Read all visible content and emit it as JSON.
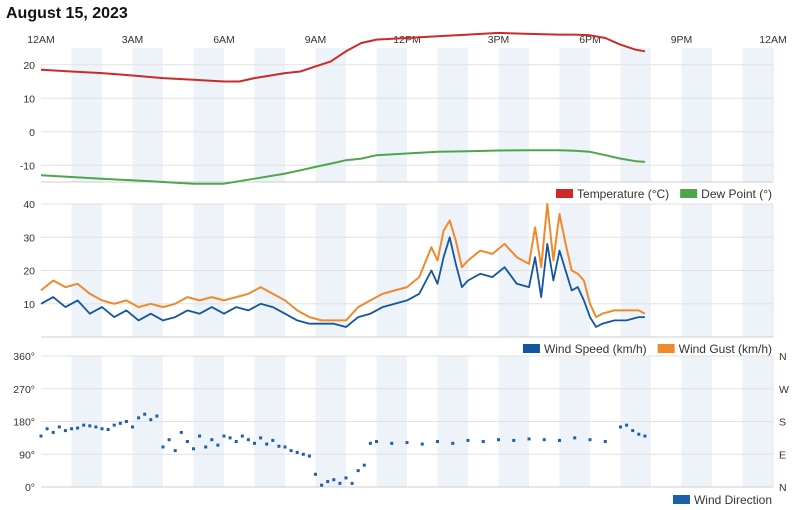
{
  "page": {
    "title": "August 15, 2023"
  },
  "time_axis": {
    "labels": [
      "12AM",
      "3AM",
      "6AM",
      "9AM",
      "12PM",
      "3PM",
      "6PM",
      "9PM",
      "12AM"
    ],
    "hours": [
      0,
      3,
      6,
      9,
      12,
      15,
      18,
      21,
      24
    ]
  },
  "colors": {
    "temperature": "#cc2a2a",
    "dew_point": "#4ea54b",
    "wind_speed": "#14569e",
    "wind_gust": "#ef8a2c",
    "wind_direction": "#1d5fa8",
    "band": "#edf3f9",
    "grid": "#e2e2e2"
  },
  "chart_data": [
    {
      "type": "line",
      "x_unit": "hour of day",
      "xlim": [
        0,
        24
      ],
      "ylim": [
        -15,
        25
      ],
      "yticks": [
        20,
        10,
        0,
        -10
      ],
      "legend_position": "bottom-right",
      "series": [
        {
          "name": "Temperature (°C)",
          "x": [
            0,
            1,
            2,
            3,
            4,
            5,
            6,
            6.5,
            7,
            8,
            8.5,
            9,
            9.5,
            10,
            10.5,
            11,
            12,
            13,
            14,
            15,
            16,
            17,
            17.5,
            18,
            18.5,
            19,
            19.5,
            19.8
          ],
          "values": [
            18.5,
            18,
            17.5,
            16.8,
            16,
            15.5,
            15,
            15,
            16,
            17.5,
            18,
            19.5,
            21,
            24,
            26.5,
            27.5,
            28,
            28.5,
            29,
            29.5,
            29.2,
            29,
            29,
            28.8,
            28,
            26,
            24.5,
            24
          ]
        },
        {
          "name": "Dew Point (°)",
          "x": [
            0,
            1,
            2,
            3,
            4,
            5,
            6,
            7,
            8,
            8.5,
            9,
            9.5,
            10,
            10.5,
            11,
            12,
            13,
            14,
            15,
            16,
            17,
            17.5,
            18,
            18.5,
            19,
            19.5,
            19.8
          ],
          "values": [
            -13,
            -13.5,
            -14,
            -14.5,
            -15,
            -15.5,
            -15.5,
            -14,
            -12.5,
            -11.5,
            -10.5,
            -9.5,
            -8.5,
            -8,
            -7,
            -6.5,
            -6,
            -5.8,
            -5.6,
            -5.5,
            -5.5,
            -5.7,
            -6,
            -7,
            -8,
            -8.8,
            -9
          ]
        }
      ]
    },
    {
      "type": "line",
      "x_unit": "hour of day",
      "xlim": [
        0,
        24
      ],
      "ylim": [
        0,
        40
      ],
      "yticks": [
        40,
        30,
        20,
        10
      ],
      "legend_position": "bottom-right",
      "series": [
        {
          "name": "Wind Speed (km/h)",
          "x": [
            0,
            0.4,
            0.8,
            1.2,
            1.6,
            2,
            2.4,
            2.8,
            3.2,
            3.6,
            4,
            4.4,
            4.8,
            5.2,
            5.6,
            6,
            6.4,
            6.8,
            7.2,
            7.6,
            8,
            8.4,
            8.8,
            9.2,
            9.6,
            10,
            10.4,
            10.8,
            11.2,
            11.6,
            12,
            12.4,
            12.8,
            13,
            13.2,
            13.4,
            13.6,
            13.8,
            14,
            14.4,
            14.8,
            15.2,
            15.6,
            16,
            16.2,
            16.4,
            16.6,
            16.8,
            17,
            17.2,
            17.4,
            17.6,
            17.8,
            18,
            18.2,
            18.4,
            18.8,
            19.2,
            19.6,
            19.8
          ],
          "values": [
            10,
            12,
            9,
            11,
            7,
            9,
            6,
            8,
            5,
            7,
            5,
            6,
            8,
            7,
            9,
            7,
            9,
            8,
            10,
            9,
            7,
            5,
            4,
            4,
            4,
            3,
            6,
            7,
            9,
            10,
            11,
            13,
            20,
            16,
            24,
            30,
            22,
            15,
            17,
            19,
            18,
            21,
            16,
            15,
            24,
            12,
            28,
            17,
            26,
            20,
            14,
            15,
            11,
            6,
            3,
            4,
            5,
            5,
            6,
            6
          ]
        },
        {
          "name": "Wind Gust (km/h)",
          "x": [
            0,
            0.4,
            0.8,
            1.2,
            1.6,
            2,
            2.4,
            2.8,
            3.2,
            3.6,
            4,
            4.4,
            4.8,
            5.2,
            5.6,
            6,
            6.4,
            6.8,
            7.2,
            7.6,
            8,
            8.4,
            8.8,
            9.2,
            9.6,
            10,
            10.4,
            10.8,
            11.2,
            11.6,
            12,
            12.4,
            12.8,
            13,
            13.2,
            13.4,
            13.6,
            13.8,
            14,
            14.4,
            14.8,
            15.2,
            15.6,
            16,
            16.2,
            16.4,
            16.6,
            16.8,
            17,
            17.2,
            17.4,
            17.6,
            17.8,
            18,
            18.2,
            18.4,
            18.8,
            19.2,
            19.6,
            19.8
          ],
          "values": [
            14,
            17,
            15,
            16,
            13,
            11,
            10,
            11,
            9,
            10,
            9,
            10,
            12,
            11,
            12,
            11,
            12,
            13,
            15,
            13,
            11,
            8,
            6,
            5,
            5,
            5,
            9,
            11,
            13,
            14,
            15,
            18,
            27,
            23,
            32,
            35,
            29,
            21,
            23,
            26,
            25,
            28,
            24,
            22,
            33,
            21,
            40,
            23,
            37,
            28,
            20,
            19,
            17,
            10,
            6,
            7,
            8,
            8,
            8,
            7
          ]
        }
      ]
    },
    {
      "type": "scatter",
      "x_unit": "hour of day",
      "xlim": [
        0,
        24
      ],
      "ylim": [
        0,
        360
      ],
      "yticks": [
        360,
        270,
        180,
        90,
        0
      ],
      "ytick_labels": [
        "360°",
        "270°",
        "180°",
        "90°",
        "0°"
      ],
      "right_tick_labels": [
        "N",
        "W",
        "S",
        "E",
        "N"
      ],
      "legend_position": "bottom-right",
      "series": [
        {
          "name": "Wind Direction",
          "x": [
            0,
            0.2,
            0.4,
            0.6,
            0.8,
            1,
            1.2,
            1.4,
            1.6,
            1.8,
            2,
            2.2,
            2.4,
            2.6,
            2.8,
            3,
            3.2,
            3.4,
            3.6,
            3.8,
            4,
            4.2,
            4.4,
            4.6,
            4.8,
            5,
            5.2,
            5.4,
            5.6,
            5.8,
            6,
            6.2,
            6.4,
            6.6,
            6.8,
            7,
            7.2,
            7.4,
            7.6,
            7.8,
            8,
            8.2,
            8.4,
            8.6,
            8.8,
            9,
            9.2,
            9.4,
            9.6,
            9.8,
            10,
            10.2,
            10.4,
            10.6,
            10.8,
            11,
            11.5,
            12,
            12.5,
            13,
            13.5,
            14,
            14.5,
            15,
            15.5,
            16,
            16.5,
            17,
            17.5,
            18,
            18.5,
            19,
            19.2,
            19.4,
            19.6,
            19.8
          ],
          "values": [
            140,
            160,
            150,
            165,
            155,
            160,
            162,
            170,
            168,
            165,
            160,
            158,
            170,
            175,
            180,
            165,
            190,
            200,
            185,
            195,
            110,
            130,
            100,
            150,
            125,
            105,
            140,
            110,
            130,
            115,
            140,
            135,
            125,
            140,
            130,
            120,
            135,
            118,
            128,
            112,
            110,
            100,
            95,
            90,
            85,
            35,
            5,
            15,
            20,
            10,
            25,
            10,
            45,
            60,
            120,
            125,
            120,
            122,
            118,
            125,
            120,
            128,
            125,
            130,
            128,
            132,
            130,
            128,
            135,
            130,
            125,
            165,
            170,
            155,
            145,
            140
          ]
        }
      ]
    }
  ]
}
